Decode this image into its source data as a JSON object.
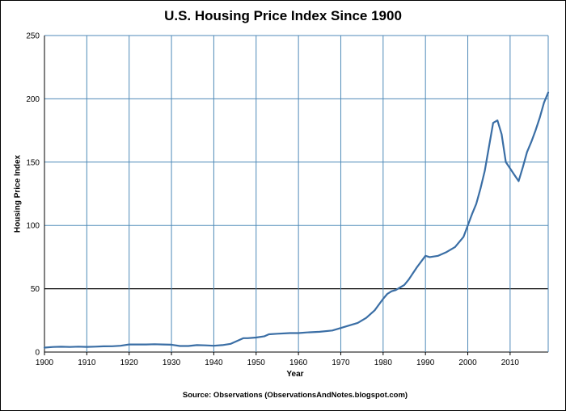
{
  "chart_data": {
    "type": "line",
    "title": "U.S. Housing Price Index Since 1900",
    "xlabel": "Year",
    "ylabel": "Housing Price Index",
    "source": "Source: Observations  (ObservationsAndNotes.blogspot.com)",
    "xlim": [
      1900,
      2019
    ],
    "ylim": [
      0,
      250
    ],
    "xticks": [
      1900,
      1910,
      1920,
      1930,
      1940,
      1950,
      1960,
      1970,
      1980,
      1990,
      2000,
      2010
    ],
    "yticks": [
      0,
      50,
      100,
      150,
      200,
      250
    ],
    "grid": true,
    "highlight_line_y": 50,
    "colors": {
      "line": "#3a6ea5",
      "grid": "#4f8ab8",
      "highlight": "#000000"
    },
    "series": [
      {
        "x": [
          1900,
          1902,
          1904,
          1906,
          1908,
          1910,
          1912,
          1914,
          1916,
          1918,
          1920,
          1922,
          1924,
          1926,
          1928,
          1930,
          1932,
          1934,
          1936,
          1938,
          1940,
          1942,
          1944,
          1946,
          1947,
          1948,
          1950,
          1952,
          1953,
          1955,
          1958,
          1960,
          1962,
          1965,
          1968,
          1970,
          1972,
          1974,
          1976,
          1978,
          1980,
          1981,
          1982,
          1983,
          1984,
          1985,
          1986,
          1988,
          1990,
          1991,
          1993,
          1995,
          1997,
          1999,
          2000,
          2001,
          2002,
          2003,
          2004,
          2005,
          2006,
          2007,
          2008,
          2009,
          2010,
          2011,
          2012,
          2013,
          2014,
          2015,
          2016,
          2017,
          2018,
          2019
        ],
        "y": [
          3.5,
          4,
          4.2,
          4,
          4.3,
          4.1,
          4.3,
          4.5,
          4.6,
          5,
          6,
          6,
          6,
          6.2,
          6,
          5.8,
          4.8,
          4.8,
          5.5,
          5.3,
          5,
          5.5,
          6.5,
          9.5,
          11,
          11,
          11.5,
          12.5,
          14,
          14.5,
          15,
          15,
          15.5,
          16,
          17,
          19,
          21,
          23,
          27,
          33,
          42,
          46,
          48,
          49,
          51,
          53,
          57,
          67,
          76,
          75,
          76,
          79,
          83,
          91,
          100,
          109,
          117,
          129,
          143,
          162,
          181,
          183,
          172,
          150,
          145,
          140,
          135,
          146,
          158,
          166,
          175,
          185,
          197,
          205
        ]
      }
    ]
  }
}
